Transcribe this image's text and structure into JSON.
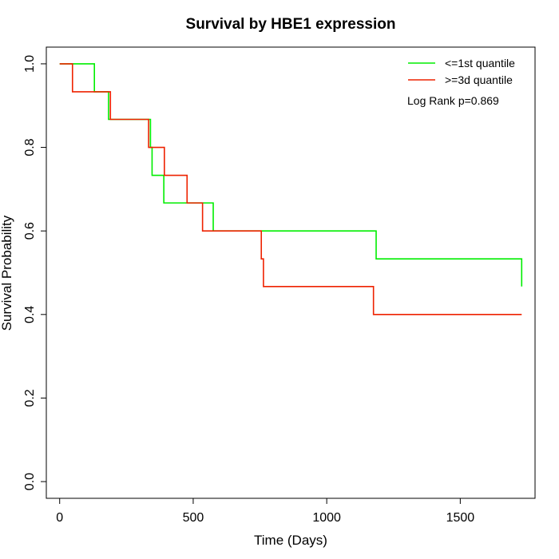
{
  "chart_data": {
    "type": "line",
    "step": true,
    "title": "Survival by HBE1 expression",
    "xlabel": "Time (Days)",
    "ylabel": "Survival Probability",
    "xlim": [
      -50,
      1780
    ],
    "ylim": [
      -0.04,
      1.04
    ],
    "xticks": [
      0,
      500,
      1000,
      1500
    ],
    "yticks": [
      0.0,
      0.2,
      0.4,
      0.6,
      0.8,
      1.0
    ],
    "xtick_labels": [
      "0",
      "500",
      "1000",
      "1500"
    ],
    "ytick_labels": [
      "0.0",
      "0.2",
      "0.4",
      "0.6",
      "0.8",
      "1.0"
    ],
    "grid": false,
    "legend_position": "top-right",
    "annotation": "Log Rank p=0.869",
    "series": [
      {
        "name": "<=1st quantile",
        "color": "#00ee00",
        "x": [
          0,
          130,
          183,
          340,
          346,
          390,
          575,
          1185,
          1730
        ],
        "y": [
          1.0,
          0.933,
          0.867,
          0.8,
          0.733,
          0.667,
          0.6,
          0.533,
          0.467
        ]
      },
      {
        "name": ">=3d quantile",
        "color": "#ee2200",
        "x": [
          0,
          48,
          190,
          333,
          392,
          477,
          535,
          755,
          763,
          1175,
          1730
        ],
        "y": [
          1.0,
          0.933,
          0.867,
          0.8,
          0.733,
          0.667,
          0.6,
          0.533,
          0.467,
          0.4,
          0.4
        ]
      }
    ]
  }
}
